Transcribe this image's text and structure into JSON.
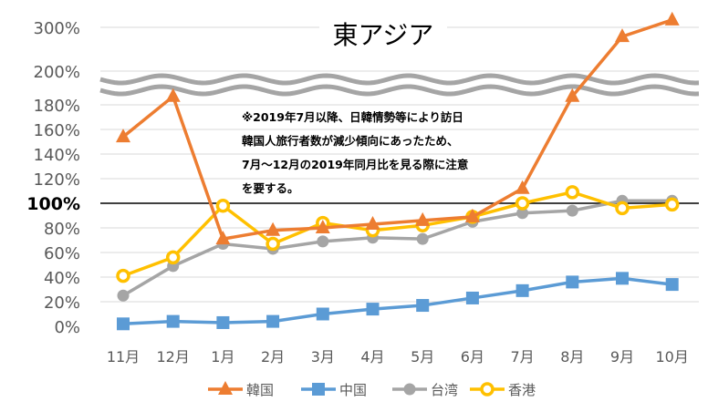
{
  "chart_data": {
    "type": "line",
    "title": "東アジア",
    "categories": [
      "11月",
      "12月",
      "1月",
      "2月",
      "3月",
      "4月",
      "5月",
      "6月",
      "7月",
      "8月",
      "9月",
      "10月"
    ],
    "y_ticks": [
      "0%",
      "20%",
      "40%",
      "60%",
      "80%",
      "100%",
      "120%",
      "140%",
      "160%",
      "180%",
      "200%",
      "300%"
    ],
    "y_axis_break": "between 180% and 200%",
    "reference_line": "100%",
    "grid": true,
    "legend_position": "bottom",
    "annotation": [
      "※2019年7月以降、日韓情勢等により訪日",
      "韓国人旅行者数が減少傾向にあったため、",
      "7月～12月の2019年同月比を見る際に注意",
      "を要する。"
    ],
    "series": [
      {
        "name": "韓国",
        "color": "#ED7D31",
        "marker": "triangle",
        "values": [
          154,
          185,
          71,
          78,
          80,
          83,
          86,
          89,
          112,
          185,
          279,
          317
        ]
      },
      {
        "name": "中国",
        "color": "#5B9BD5",
        "marker": "square",
        "values": [
          2,
          4,
          3,
          4,
          10,
          14,
          17,
          23,
          29,
          36,
          39,
          34
        ]
      },
      {
        "name": "台湾",
        "color": "#A5A5A5",
        "marker": "circle",
        "values": [
          25,
          49,
          67,
          63,
          69,
          72,
          71,
          85,
          92,
          94,
          102,
          102
        ]
      },
      {
        "name": "香港",
        "color": "#FFC000",
        "marker": "hollow-circle",
        "values": [
          41,
          56,
          98,
          67,
          84,
          78,
          82,
          89,
          100,
          109,
          96,
          99
        ]
      }
    ]
  }
}
